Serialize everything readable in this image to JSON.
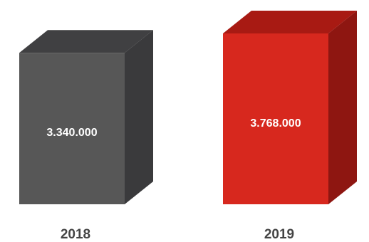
{
  "chart_data": {
    "type": "bar",
    "categories": [
      "2018",
      "2019"
    ],
    "values": [
      3340000,
      3768000
    ],
    "value_labels": [
      "3.340.000",
      "3.768.000"
    ],
    "colors": {
      "2018": {
        "front": "#575757",
        "top": "#404042",
        "side": "#3a3a3c"
      },
      "2019": {
        "front": "#d7281e",
        "top": "#a81a13",
        "side": "#8e1611"
      }
    },
    "grid": false,
    "legend": "none"
  }
}
